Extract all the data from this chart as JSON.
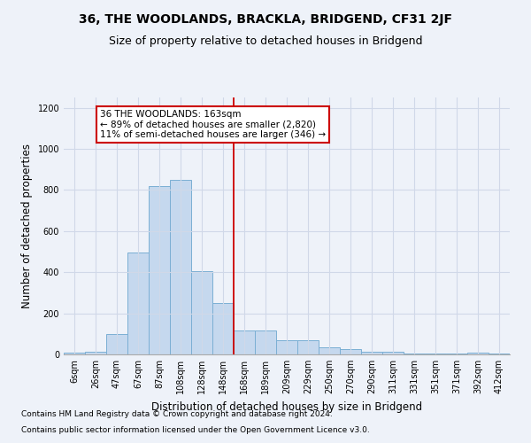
{
  "title": "36, THE WOODLANDS, BRACKLA, BRIDGEND, CF31 2JF",
  "subtitle": "Size of property relative to detached houses in Bridgend",
  "xlabel": "Distribution of detached houses by size in Bridgend",
  "ylabel": "Number of detached properties",
  "categories": [
    "6sqm",
    "26sqm",
    "47sqm",
    "67sqm",
    "87sqm",
    "108sqm",
    "128sqm",
    "148sqm",
    "168sqm",
    "189sqm",
    "209sqm",
    "229sqm",
    "250sqm",
    "270sqm",
    "290sqm",
    "311sqm",
    "331sqm",
    "351sqm",
    "371sqm",
    "392sqm",
    "412sqm"
  ],
  "values": [
    8,
    12,
    100,
    495,
    820,
    850,
    405,
    252,
    115,
    115,
    68,
    68,
    33,
    25,
    14,
    14,
    3,
    3,
    3,
    9,
    3
  ],
  "bar_color": "#c5d8ee",
  "bar_edge_color": "#7bafd4",
  "vline_color": "#cc0000",
  "vline_index": 8,
  "annotation_text": "36 THE WOODLANDS: 163sqm\n← 89% of detached houses are smaller (2,820)\n11% of semi-detached houses are larger (346) →",
  "annotation_box_facecolor": "#ffffff",
  "annotation_box_edgecolor": "#cc0000",
  "ylim": [
    0,
    1250
  ],
  "yticks": [
    0,
    200,
    400,
    600,
    800,
    1000,
    1200
  ],
  "footnote1": "Contains HM Land Registry data © Crown copyright and database right 2024.",
  "footnote2": "Contains public sector information licensed under the Open Government Licence v3.0.",
  "bg_color": "#eef2f9",
  "plot_bg_color": "#eef2f9",
  "grid_color": "#d0d8e8",
  "title_fontsize": 10,
  "subtitle_fontsize": 9,
  "xlabel_fontsize": 8.5,
  "ylabel_fontsize": 8.5,
  "tick_fontsize": 7,
  "annotation_fontsize": 7.5,
  "footnote_fontsize": 6.5
}
